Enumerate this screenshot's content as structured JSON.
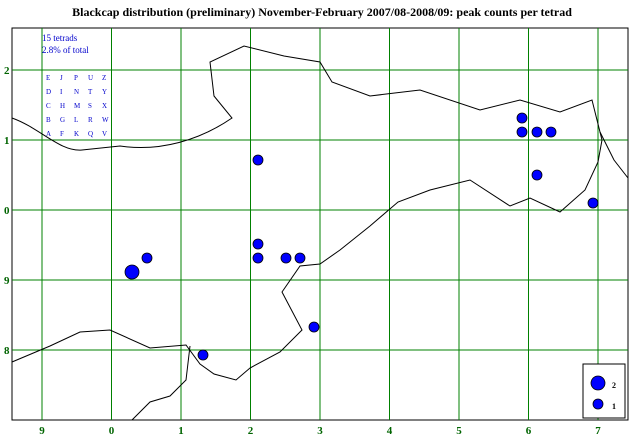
{
  "title": "Blackcap distribution (preliminary) November-February 2007/08-2008/09: peak counts per tetrad",
  "info": {
    "tetrads": "15 tetrads",
    "share": "2.8% of total"
  },
  "tetrad_key": [
    [
      "E",
      "J",
      "P",
      "U",
      "Z"
    ],
    [
      "D",
      "I",
      "N",
      "T",
      "Y"
    ],
    [
      "C",
      "H",
      "M",
      "S",
      "X"
    ],
    [
      "B",
      "G",
      "L",
      "R",
      "W"
    ],
    [
      "A",
      "F",
      "K",
      "Q",
      "V"
    ]
  ],
  "x_labels": [
    "9",
    "0",
    "1",
    "2",
    "3",
    "4",
    "5",
    "6",
    "7"
  ],
  "y_labels": [
    "2",
    "1",
    "0",
    "9",
    "8"
  ],
  "legend": [
    {
      "label": "2",
      "value": 2
    },
    {
      "label": "1",
      "value": 1
    }
  ],
  "points": [
    {
      "count": 1
    },
    {
      "count": 1
    },
    {
      "count": 1
    },
    {
      "count": 1
    },
    {
      "count": 1
    },
    {
      "count": 1
    },
    {
      "count": 1
    },
    {
      "count": 1
    },
    {
      "count": 1
    },
    {
      "count": 1
    },
    {
      "count": 1
    },
    {
      "count": 1
    },
    {
      "count": 2
    },
    {
      "count": 1
    },
    {
      "count": 1
    }
  ]
}
